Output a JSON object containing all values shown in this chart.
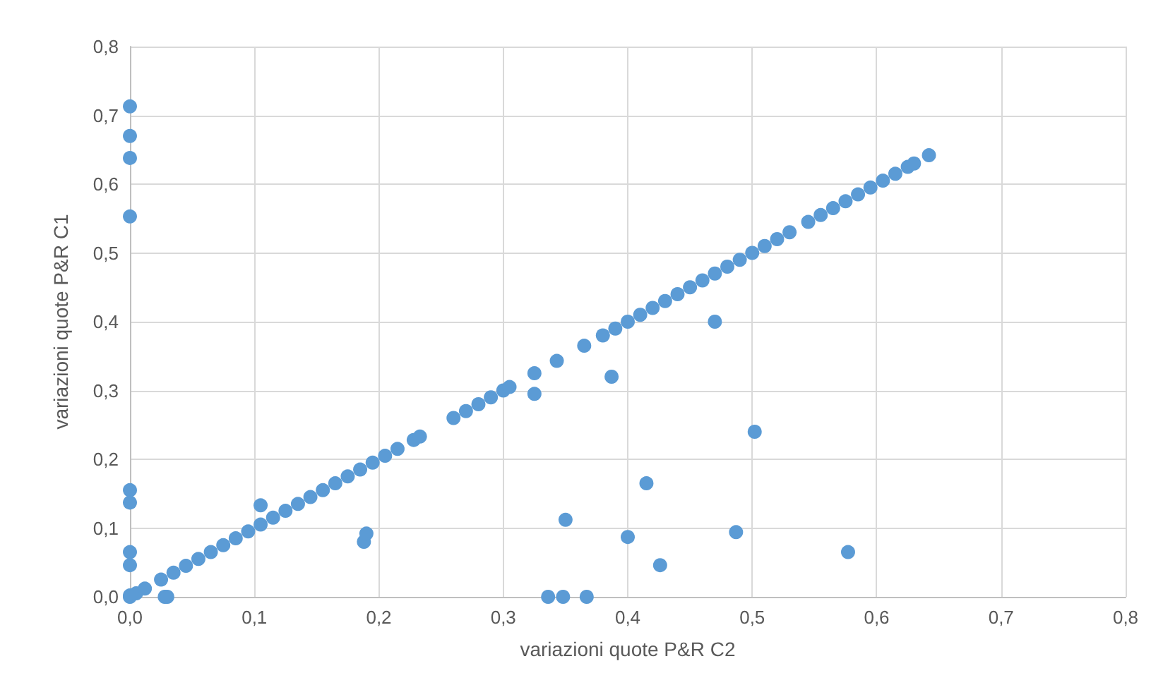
{
  "chart_data": {
    "type": "scatter",
    "xlabel": "variazioni quote P&R C2",
    "ylabel": "variazioni quote P&R C1",
    "grid": true,
    "marker": "circle",
    "xlim": [
      0,
      0.8
    ],
    "ylim": [
      0,
      0.8
    ],
    "xticks": [
      {
        "value": 0,
        "label": "0,0"
      },
      {
        "value": 0.1,
        "label": "0,1"
      },
      {
        "value": 0.2,
        "label": "0,2"
      },
      {
        "value": 0.3,
        "label": "0,3"
      },
      {
        "value": 0.4,
        "label": "0,4"
      },
      {
        "value": 0.5,
        "label": "0,5"
      },
      {
        "value": 0.6,
        "label": "0,6"
      },
      {
        "value": 0.7,
        "label": "0,7"
      },
      {
        "value": 0.8,
        "label": "0,8"
      }
    ],
    "yticks": [
      {
        "value": 0,
        "label": "0,0"
      },
      {
        "value": 0.1,
        "label": "0,1"
      },
      {
        "value": 0.2,
        "label": "0,2"
      },
      {
        "value": 0.3,
        "label": "0,3"
      },
      {
        "value": 0.4,
        "label": "0,4"
      },
      {
        "value": 0.5,
        "label": "0,5"
      },
      {
        "value": 0.6,
        "label": "0,6"
      },
      {
        "value": 0.7,
        "label": "0,7"
      },
      {
        "value": 0.8,
        "label": "0,8"
      }
    ],
    "series": [
      {
        "color": "#5b9bd5",
        "x": [
          0,
          0,
          0,
          0,
          0,
          0,
          0,
          0,
          0,
          0,
          0.005,
          0.012,
          0.028,
          0.03,
          0.105,
          0.188,
          0.19,
          0.325,
          0.387,
          0.47,
          0.502,
          0.415,
          0.35,
          0.4,
          0.487,
          0.426,
          0.577,
          0.336,
          0.348,
          0.367,
          0.025,
          0.035,
          0.045,
          0.055,
          0.065,
          0.075,
          0.085,
          0.095,
          0.105,
          0.115,
          0.125,
          0.135,
          0.145,
          0.155,
          0.165,
          0.175,
          0.185,
          0.195,
          0.205,
          0.215,
          0.228,
          0.233,
          0.26,
          0.27,
          0.28,
          0.29,
          0.3,
          0.305,
          0.325,
          0.343,
          0.365,
          0.38,
          0.39,
          0.4,
          0.41,
          0.42,
          0.43,
          0.44,
          0.45,
          0.46,
          0.47,
          0.48,
          0.49,
          0.5,
          0.51,
          0.52,
          0.53,
          0.545,
          0.555,
          0.565,
          0.575,
          0.585,
          0.595,
          0.605,
          0.615,
          0.625,
          0.63,
          0.642
        ],
        "values": [
          0.713,
          0.67,
          0.638,
          0.553,
          0.155,
          0.137,
          0.065,
          0.046,
          0.002,
          0,
          0.005,
          0.012,
          0,
          0,
          0.133,
          0.08,
          0.092,
          0.295,
          0.32,
          0.4,
          0.24,
          0.165,
          0.112,
          0.087,
          0.094,
          0.046,
          0.065,
          0,
          0,
          0,
          0.025,
          0.035,
          0.045,
          0.055,
          0.065,
          0.075,
          0.085,
          0.095,
          0.105,
          0.115,
          0.125,
          0.135,
          0.145,
          0.155,
          0.165,
          0.175,
          0.185,
          0.195,
          0.205,
          0.215,
          0.228,
          0.233,
          0.26,
          0.27,
          0.28,
          0.29,
          0.3,
          0.305,
          0.325,
          0.343,
          0.365,
          0.38,
          0.39,
          0.4,
          0.41,
          0.42,
          0.43,
          0.44,
          0.45,
          0.46,
          0.47,
          0.48,
          0.49,
          0.5,
          0.51,
          0.52,
          0.53,
          0.545,
          0.555,
          0.565,
          0.575,
          0.585,
          0.595,
          0.605,
          0.615,
          0.625,
          0.63,
          0.642
        ]
      }
    ]
  }
}
